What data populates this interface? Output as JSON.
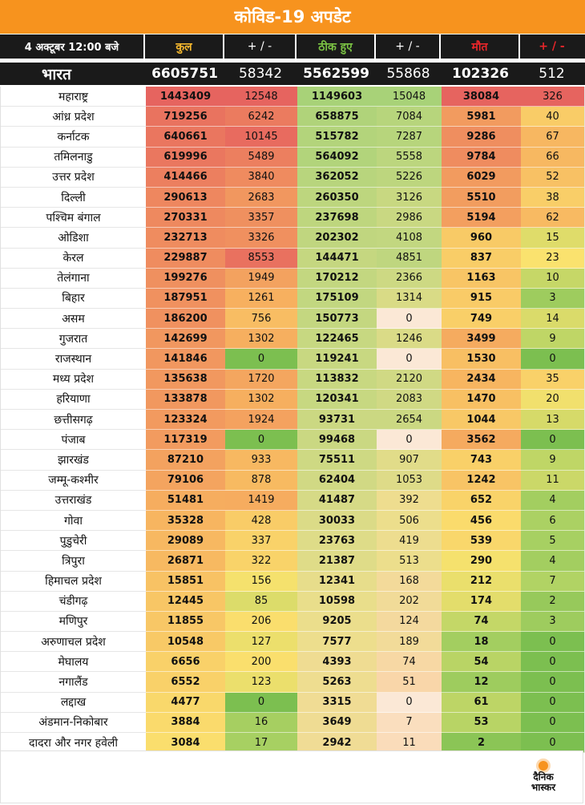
{
  "title": "कोविड-19 अपडेट",
  "header": {
    "date": "4 अक्टूबर  12:00 बजे",
    "total": "कुल",
    "plusminus": "+ / -",
    "recovered": "ठीक हुए",
    "deaths": "मौत"
  },
  "india": {
    "name": "भारत",
    "total": "6605751",
    "total_change": "58342",
    "recovered": "5562599",
    "recovered_change": "55868",
    "deaths": "102326",
    "deaths_change": "512"
  },
  "rows": [
    {
      "state": "महाराष्ट्र",
      "total": "1443409",
      "total_change": "12548",
      "recovered": "1149603",
      "recovered_change": "15048",
      "deaths": "38084",
      "deaths_change": "326"
    },
    {
      "state": "आंध्र प्रदेश",
      "total": "719256",
      "total_change": "6242",
      "recovered": "658875",
      "recovered_change": "7084",
      "deaths": "5981",
      "deaths_change": "40"
    },
    {
      "state": "कर्नाटक",
      "total": "640661",
      "total_change": "10145",
      "recovered": "515782",
      "recovered_change": "7287",
      "deaths": "9286",
      "deaths_change": "67"
    },
    {
      "state": "तमिलनाडु",
      "total": "619996",
      "total_change": "5489",
      "recovered": "564092",
      "recovered_change": "5558",
      "deaths": "9784",
      "deaths_change": "66"
    },
    {
      "state": "उत्तर प्रदेश",
      "total": "414466",
      "total_change": "3840",
      "recovered": "362052",
      "recovered_change": "5226",
      "deaths": "6029",
      "deaths_change": "52"
    },
    {
      "state": "दिल्ली",
      "total": "290613",
      "total_change": "2683",
      "recovered": "260350",
      "recovered_change": "3126",
      "deaths": "5510",
      "deaths_change": "38"
    },
    {
      "state": "पश्चिम बंगाल",
      "total": "270331",
      "total_change": "3357",
      "recovered": "237698",
      "recovered_change": "2986",
      "deaths": "5194",
      "deaths_change": "62"
    },
    {
      "state": "ओडिशा",
      "total": "232713",
      "total_change": "3326",
      "recovered": "202302",
      "recovered_change": "4108",
      "deaths": "960",
      "deaths_change": "15"
    },
    {
      "state": "केरल",
      "total": "229887",
      "total_change": "8553",
      "recovered": "144471",
      "recovered_change": "4851",
      "deaths": "837",
      "deaths_change": "23"
    },
    {
      "state": "तेलंगाना",
      "total": "199276",
      "total_change": "1949",
      "recovered": "170212",
      "recovered_change": "2366",
      "deaths": "1163",
      "deaths_change": "10"
    },
    {
      "state": "बिहार",
      "total": "187951",
      "total_change": "1261",
      "recovered": "175109",
      "recovered_change": "1314",
      "deaths": "915",
      "deaths_change": "3"
    },
    {
      "state": "असम",
      "total": "186200",
      "total_change": "756",
      "recovered": "150773",
      "recovered_change": "0",
      "deaths": "749",
      "deaths_change": "14"
    },
    {
      "state": "गुजरात",
      "total": "142699",
      "total_change": "1302",
      "recovered": "122465",
      "recovered_change": "1246",
      "deaths": "3499",
      "deaths_change": "9"
    },
    {
      "state": "राजस्थान",
      "total": "141846",
      "total_change": "0",
      "recovered": "119241",
      "recovered_change": "0",
      "deaths": "1530",
      "deaths_change": "0"
    },
    {
      "state": "मध्य प्रदेश",
      "total": "135638",
      "total_change": "1720",
      "recovered": "113832",
      "recovered_change": "2120",
      "deaths": "2434",
      "deaths_change": "35"
    },
    {
      "state": "हरियाणा",
      "total": "133878",
      "total_change": "1302",
      "recovered": "120341",
      "recovered_change": "2083",
      "deaths": "1470",
      "deaths_change": "20"
    },
    {
      "state": "छत्तीसगढ़",
      "total": "123324",
      "total_change": "1924",
      "recovered": "93731",
      "recovered_change": "2654",
      "deaths": "1044",
      "deaths_change": "13"
    },
    {
      "state": "पंजाब",
      "total": "117319",
      "total_change": "0",
      "recovered": "99468",
      "recovered_change": "0",
      "deaths": "3562",
      "deaths_change": "0"
    },
    {
      "state": "झारखंड",
      "total": "87210",
      "total_change": "933",
      "recovered": "75511",
      "recovered_change": "907",
      "deaths": "743",
      "deaths_change": "9"
    },
    {
      "state": "जम्मू-कश्मीर",
      "total": "79106",
      "total_change": "878",
      "recovered": "62404",
      "recovered_change": "1053",
      "deaths": "1242",
      "deaths_change": "11"
    },
    {
      "state": "उत्तराखंड",
      "total": "51481",
      "total_change": "1419",
      "recovered": "41487",
      "recovered_change": "392",
      "deaths": "652",
      "deaths_change": "4"
    },
    {
      "state": "गोवा",
      "total": "35328",
      "total_change": "428",
      "recovered": "30033",
      "recovered_change": "506",
      "deaths": "456",
      "deaths_change": "6"
    },
    {
      "state": "पुडुचेरी",
      "total": "29089",
      "total_change": "337",
      "recovered": "23763",
      "recovered_change": "419",
      "deaths": "539",
      "deaths_change": "5"
    },
    {
      "state": "त्रिपुरा",
      "total": "26871",
      "total_change": "322",
      "recovered": "21387",
      "recovered_change": "513",
      "deaths": "290",
      "deaths_change": "4"
    },
    {
      "state": "हिमाचल प्रदेश",
      "total": "15851",
      "total_change": "156",
      "recovered": "12341",
      "recovered_change": "168",
      "deaths": "212",
      "deaths_change": "7"
    },
    {
      "state": "चंडीगढ़",
      "total": "12445",
      "total_change": "85",
      "recovered": "10598",
      "recovered_change": "202",
      "deaths": "174",
      "deaths_change": "2"
    },
    {
      "state": "मणिपुर",
      "total": "11855",
      "total_change": "206",
      "recovered": "9205",
      "recovered_change": "124",
      "deaths": "74",
      "deaths_change": "3"
    },
    {
      "state": "अरुणाचल प्रदेश",
      "total": "10548",
      "total_change": "127",
      "recovered": "7577",
      "recovered_change": "189",
      "deaths": "18",
      "deaths_change": "0"
    },
    {
      "state": "मेघालय",
      "total": "6656",
      "total_change": "200",
      "recovered": "4393",
      "recovered_change": "74",
      "deaths": "54",
      "deaths_change": "0"
    },
    {
      "state": "नगालैंड",
      "total": "6552",
      "total_change": "123",
      "recovered": "5263",
      "recovered_change": "51",
      "deaths": "12",
      "deaths_change": "0"
    },
    {
      "state": "लद्दाख",
      "total": "4477",
      "total_change": "0",
      "recovered": "3315",
      "recovered_change": "0",
      "deaths": "61",
      "deaths_change": "0"
    },
    {
      "state": "अंडमान-निकोबार",
      "total": "3884",
      "total_change": "16",
      "recovered": "3649",
      "recovered_change": "7",
      "deaths": "53",
      "deaths_change": "0"
    },
    {
      "state": "दादरा और नगर हवेली",
      "total": "3084",
      "total_change": "17",
      "recovered": "2942",
      "recovered_change": "11",
      "deaths": "2",
      "deaths_change": "0"
    }
  ],
  "logo": {
    "line1": "दैनिक",
    "line2": "भास्कर"
  }
}
